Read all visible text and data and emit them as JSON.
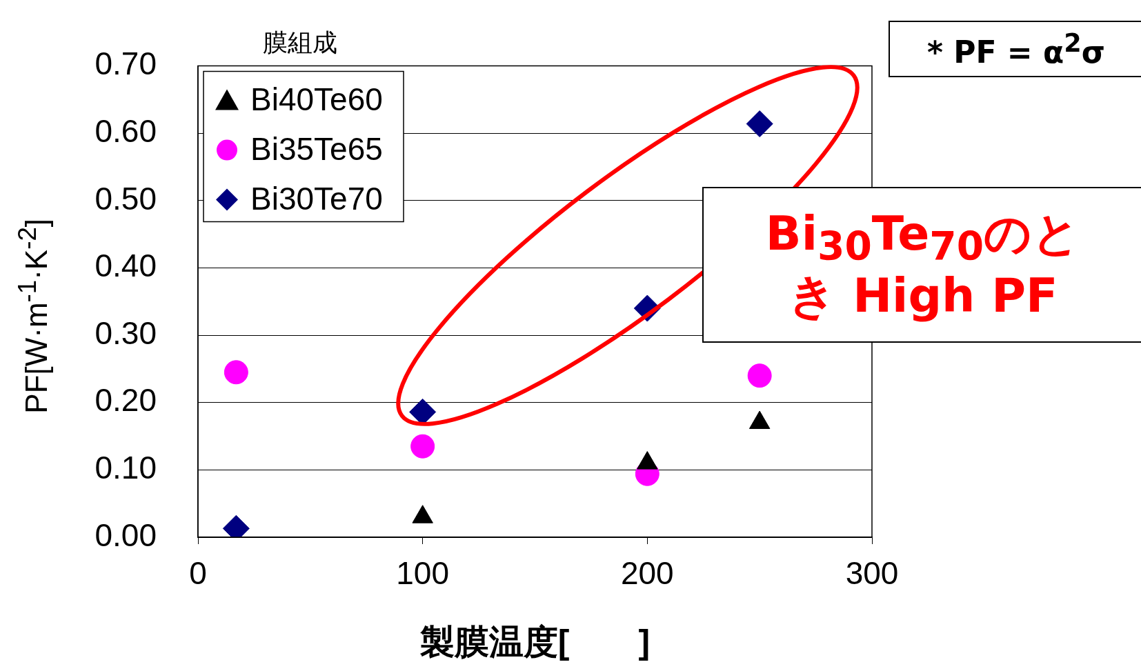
{
  "chart_data": {
    "type": "scatter",
    "xlabel": "製膜温度[　　]",
    "ylabel": "PF[W·m$^{-1}$·K$^{-2}$]",
    "legend_title": "膜組成",
    "xlim": [
      0,
      300
    ],
    "xticks": [
      0,
      100,
      200,
      300
    ],
    "ylim": [
      0,
      0.7
    ],
    "yticks": [
      {
        "value": 0,
        "label": "0.00"
      },
      {
        "value": 0.1,
        "label": "0.10"
      },
      {
        "value": 0.2,
        "label": "0.20"
      },
      {
        "value": 0.3,
        "label": "0.30"
      },
      {
        "value": 0.4,
        "label": "0.40"
      },
      {
        "value": 0.5,
        "label": "0.50"
      },
      {
        "value": 0.6,
        "label": "0.60"
      },
      {
        "value": 0.7,
        "label": "0.70"
      }
    ],
    "grid": "y",
    "legend": "top left",
    "series": [
      {
        "name": "Bi40Te60",
        "color": "#000000",
        "marker": "triangle",
        "x": [
          100,
          200,
          250
        ],
        "values": [
          0.03,
          0.11,
          0.17
        ]
      },
      {
        "name": "Bi35Te65",
        "color": "#ff00ff",
        "marker": "circle",
        "x": [
          17,
          100,
          200,
          250
        ],
        "values": [
          0.245,
          0.135,
          0.094,
          0.24
        ]
      },
      {
        "name": "Bi30Te70",
        "color": "#000080",
        "marker": "diamond",
        "x": [
          17,
          100,
          200,
          250
        ],
        "values": [
          0.013,
          0.186,
          0.34,
          0.614
        ]
      }
    ],
    "annotations": [
      "* PF = α$^{2}$σ",
      "Bi$_{30}$Te$_{70}$のとき High PF"
    ]
  }
}
